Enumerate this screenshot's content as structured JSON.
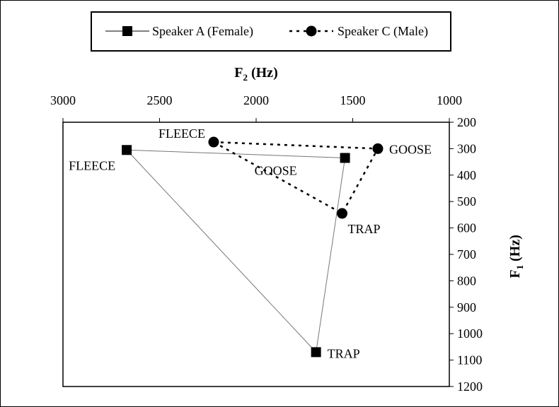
{
  "chart_data": {
    "type": "line",
    "title": "",
    "xlabel": {
      "base": "F",
      "sub": "2",
      "rest": " (Hz)"
    },
    "ylabel": {
      "base": "F",
      "sub": "1",
      "rest": " (Hz)"
    },
    "x_axis": {
      "reversed": true,
      "position": "top",
      "min": 1000,
      "max": 3000,
      "ticks": [
        3000,
        2500,
        2000,
        1500,
        1000
      ]
    },
    "y_axis": {
      "reversed": true,
      "position": "right",
      "min": 200,
      "max": 1200,
      "ticks": [
        200,
        300,
        400,
        500,
        600,
        700,
        800,
        900,
        1000,
        1100,
        1200
      ]
    },
    "grid": false,
    "legend_position": "top",
    "series": [
      {
        "name": "Speaker A (Female)",
        "marker": "square",
        "line_style": "solid",
        "color": "#000000",
        "line_color": "#777777",
        "points": [
          {
            "label": "FLEECE",
            "f2": 2670,
            "f1": 305
          },
          {
            "label": "GOOSE",
            "f2": 1540,
            "f1": 335
          },
          {
            "label": "TRAP",
            "f2": 1690,
            "f1": 1070
          }
        ]
      },
      {
        "name": "Speaker C (Male)",
        "marker": "circle",
        "line_style": "dotted",
        "color": "#000000",
        "line_color": "#000000",
        "points": [
          {
            "label": "FLEECE",
            "f2": 2220,
            "f1": 275
          },
          {
            "label": "GOOSE",
            "f2": 1370,
            "f1": 300
          },
          {
            "label": "TRAP",
            "f2": 1555,
            "f1": 545
          }
        ]
      }
    ]
  }
}
